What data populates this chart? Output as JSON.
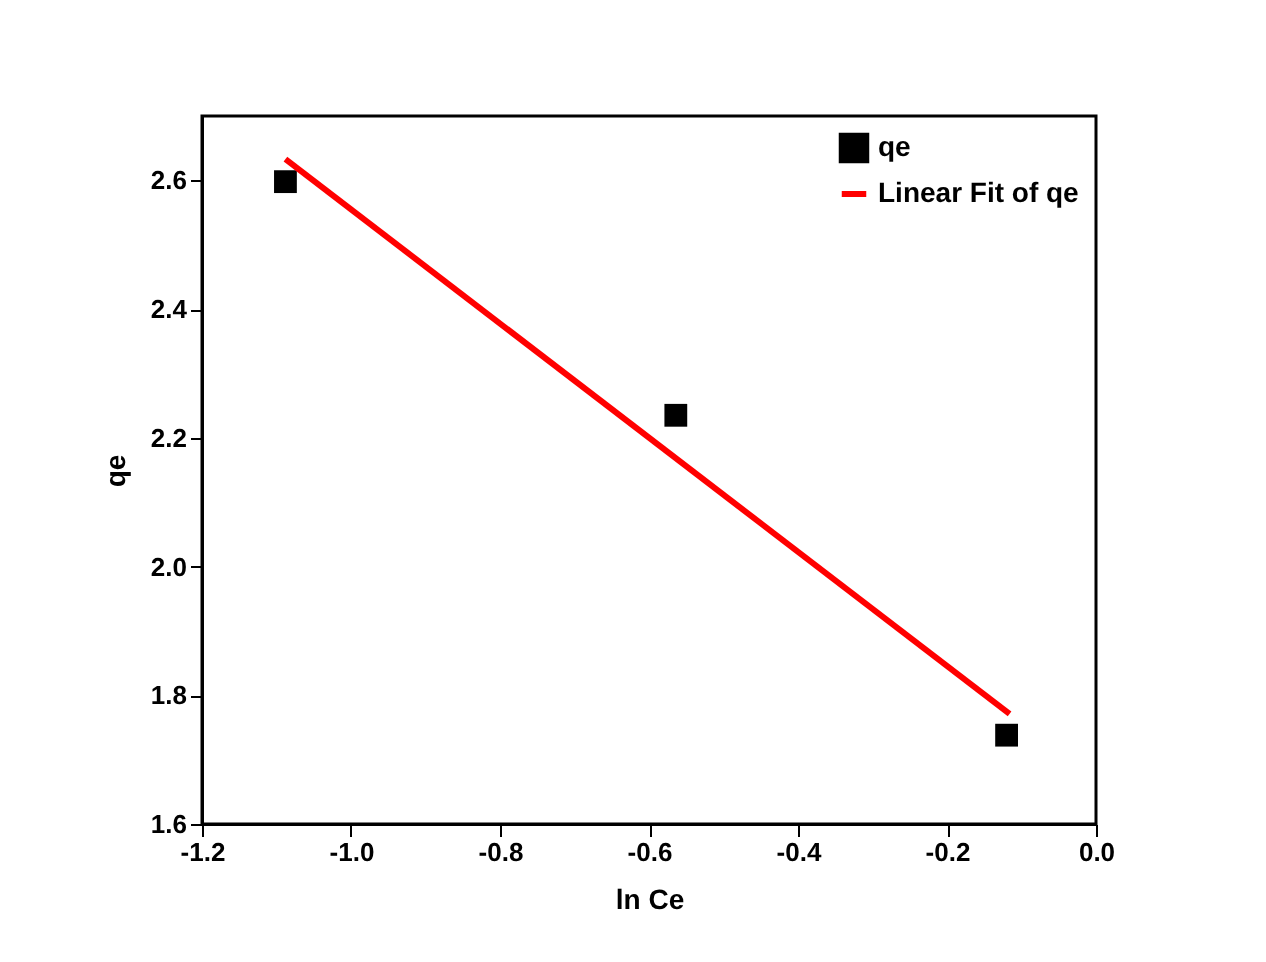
{
  "chart_data": {
    "type": "scatter",
    "xlabel": "ln Ce",
    "ylabel": "qe",
    "xlim": [
      -1.2,
      0.0
    ],
    "ylim": [
      1.6,
      2.7
    ],
    "xticks": [
      {
        "value": -1.2,
        "label": "-1.2"
      },
      {
        "value": -1.0,
        "label": "-1.0"
      },
      {
        "value": -0.8,
        "label": "-0.8"
      },
      {
        "value": -0.6,
        "label": "-0.6"
      },
      {
        "value": -0.4,
        "label": "-0.4"
      },
      {
        "value": -0.2,
        "label": "-0.2"
      },
      {
        "value": 0.0,
        "label": "0.0"
      }
    ],
    "yticks": [
      {
        "value": 1.6,
        "label": "1.6"
      },
      {
        "value": 1.8,
        "label": "1.8"
      },
      {
        "value": 2.0,
        "label": "2.0"
      },
      {
        "value": 2.2,
        "label": "2.2"
      },
      {
        "value": 2.4,
        "label": "2.4"
      },
      {
        "value": 2.6,
        "label": "2.6"
      }
    ],
    "grid": false,
    "legend": "top right",
    "marker": "square",
    "series": [
      {
        "name": "qe",
        "type": "scatter",
        "color": "#000000",
        "x": [
          -1.088,
          -0.564,
          -0.12
        ],
        "values": [
          2.598,
          2.235,
          1.738
        ]
      },
      {
        "name": "Linear Fit of qe",
        "type": "line",
        "color": "#ff0000",
        "line_style": "solid",
        "marker": "none",
        "x": [
          -1.088,
          -0.116
        ],
        "values": [
          2.633,
          1.771
        ]
      }
    ]
  }
}
